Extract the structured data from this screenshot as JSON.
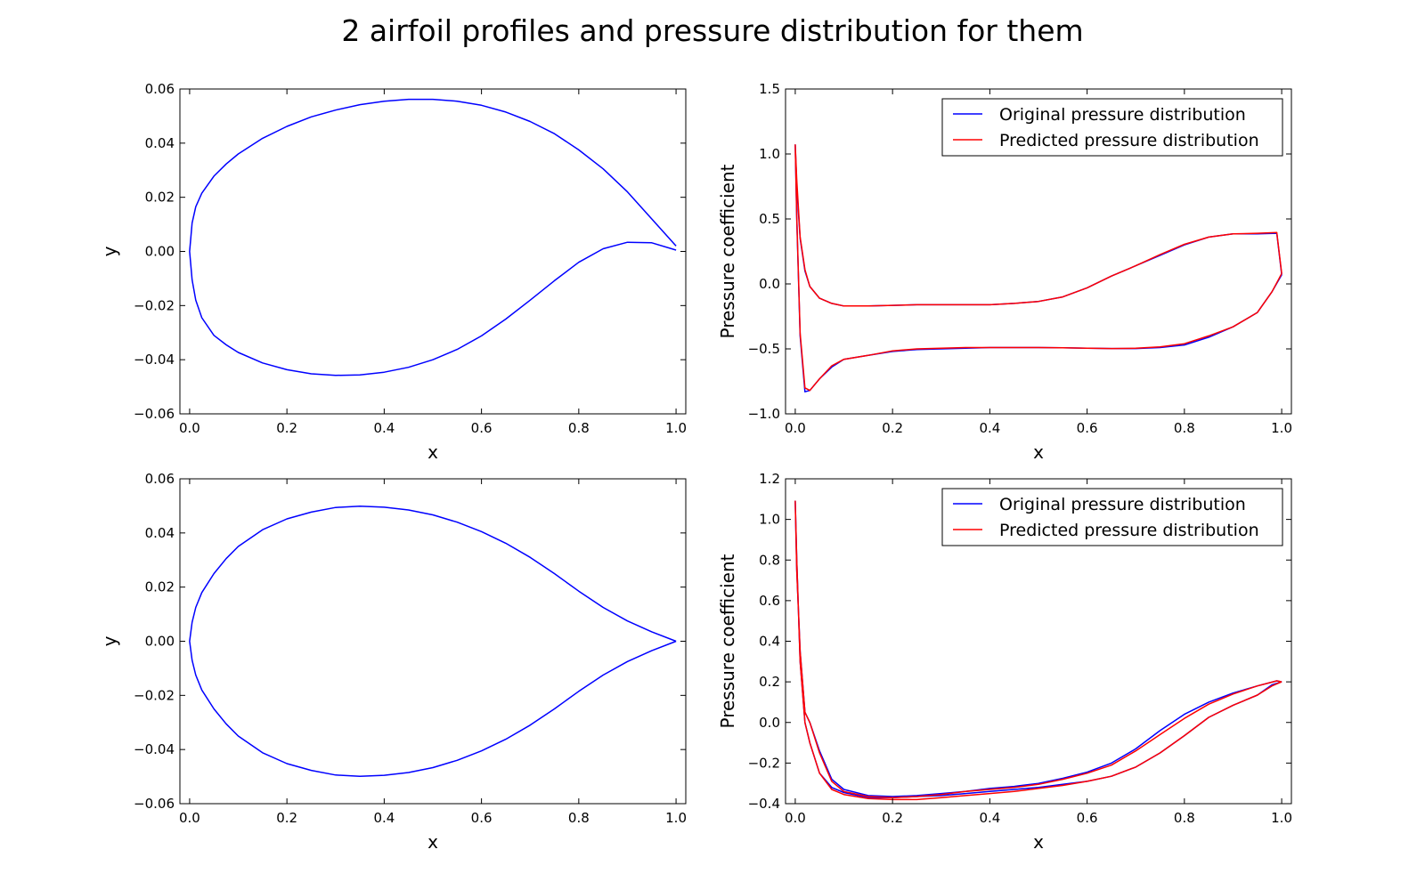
{
  "figure": {
    "title": "2 airfoil profiles and pressure distribution for them"
  },
  "colors": {
    "blue": "#0000ff",
    "red": "#ff0000"
  },
  "chart_data": [
    {
      "type": "line",
      "xlabel": "x",
      "ylabel": "y",
      "xlim": [
        -0.02,
        1.02
      ],
      "ylim": [
        -0.06,
        0.06
      ],
      "xticks": [
        0.0,
        0.2,
        0.4,
        0.6,
        0.8,
        1.0
      ],
      "xtick_labels": [
        "0.0",
        "0.2",
        "0.4",
        "0.6",
        "0.8",
        "1.0"
      ],
      "yticks": [
        -0.06,
        -0.04,
        -0.02,
        0.0,
        0.02,
        0.04,
        0.06
      ],
      "ytick_labels": [
        "−0.06",
        "−0.04",
        "−0.02",
        "0.00",
        "0.02",
        "0.04",
        "0.06"
      ],
      "series": [
        {
          "color": "blue",
          "x": [
            1.0,
            0.95,
            0.9,
            0.85,
            0.8,
            0.75,
            0.7,
            0.65,
            0.6,
            0.55,
            0.5,
            0.45,
            0.4,
            0.35,
            0.3,
            0.25,
            0.2,
            0.15,
            0.1,
            0.075,
            0.05,
            0.025,
            0.0125,
            0.005,
            0.0,
            0.005,
            0.0125,
            0.025,
            0.05,
            0.075,
            0.1,
            0.15,
            0.2,
            0.25,
            0.3,
            0.35,
            0.4,
            0.45,
            0.5,
            0.55,
            0.6,
            0.65,
            0.7,
            0.75,
            0.8,
            0.85,
            0.9,
            0.95,
            1.0
          ],
          "y": [
            0.002,
            0.012,
            0.022,
            0.0305,
            0.0375,
            0.0435,
            0.048,
            0.0515,
            0.054,
            0.0555,
            0.0562,
            0.0562,
            0.0555,
            0.0542,
            0.0522,
            0.0497,
            0.0462,
            0.0418,
            0.036,
            0.0323,
            0.0278,
            0.0215,
            0.0165,
            0.0105,
            0.0,
            -0.0105,
            -0.018,
            -0.0245,
            -0.031,
            -0.0345,
            -0.0373,
            -0.0412,
            -0.0437,
            -0.0452,
            -0.0458,
            -0.0456,
            -0.0446,
            -0.0428,
            -0.04,
            -0.0362,
            -0.0312,
            -0.025,
            -0.018,
            -0.0108,
            -0.004,
            0.001,
            0.0034,
            0.0032,
            0.0005
          ]
        }
      ]
    },
    {
      "type": "line",
      "xlabel": "x",
      "ylabel": "Pressure coefficient",
      "xlim": [
        -0.02,
        1.02
      ],
      "ylim": [
        -1.0,
        1.5
      ],
      "xticks": [
        0.0,
        0.2,
        0.4,
        0.6,
        0.8,
        1.0
      ],
      "xtick_labels": [
        "0.0",
        "0.2",
        "0.4",
        "0.6",
        "0.8",
        "1.0"
      ],
      "yticks": [
        -1.0,
        -0.5,
        0.0,
        0.5,
        1.0,
        1.5
      ],
      "ytick_labels": [
        "−1.0",
        "−0.5",
        "0.0",
        "0.5",
        "1.0",
        "1.5"
      ],
      "legend": {
        "position": "upper right",
        "entries": [
          "Original pressure distribution",
          "Predicted pressure distribution"
        ]
      },
      "series": [
        {
          "name": "Original pressure distribution",
          "color": "blue",
          "x": [
            1.0,
            0.99,
            0.95,
            0.9,
            0.85,
            0.8,
            0.75,
            0.7,
            0.65,
            0.6,
            0.55,
            0.5,
            0.45,
            0.4,
            0.35,
            0.3,
            0.25,
            0.2,
            0.15,
            0.1,
            0.075,
            0.05,
            0.03,
            0.02,
            0.01,
            0.003,
            0.0,
            0.003,
            0.01,
            0.02,
            0.03,
            0.05,
            0.075,
            0.1,
            0.15,
            0.2,
            0.25,
            0.3,
            0.35,
            0.4,
            0.45,
            0.5,
            0.55,
            0.6,
            0.65,
            0.7,
            0.75,
            0.8,
            0.85,
            0.9,
            0.95,
            0.98,
            1.0
          ],
          "y": [
            0.07,
            0.39,
            0.385,
            0.385,
            0.36,
            0.3,
            0.22,
            0.14,
            0.06,
            -0.03,
            -0.1,
            -0.135,
            -0.15,
            -0.16,
            -0.16,
            -0.16,
            -0.16,
            -0.165,
            -0.17,
            -0.17,
            -0.15,
            -0.11,
            -0.02,
            0.1,
            0.35,
            0.75,
            1.07,
            0.5,
            -0.4,
            -0.83,
            -0.82,
            -0.73,
            -0.64,
            -0.58,
            -0.55,
            -0.52,
            -0.505,
            -0.5,
            -0.495,
            -0.49,
            -0.49,
            -0.49,
            -0.492,
            -0.495,
            -0.497,
            -0.497,
            -0.49,
            -0.47,
            -0.41,
            -0.33,
            -0.22,
            -0.06,
            0.07
          ]
        },
        {
          "name": "Predicted pressure distribution",
          "color": "red",
          "x": [
            1.0,
            0.99,
            0.95,
            0.9,
            0.85,
            0.8,
            0.75,
            0.7,
            0.65,
            0.6,
            0.55,
            0.5,
            0.45,
            0.4,
            0.35,
            0.3,
            0.25,
            0.2,
            0.15,
            0.1,
            0.075,
            0.05,
            0.03,
            0.02,
            0.01,
            0.003,
            0.0,
            0.003,
            0.01,
            0.02,
            0.03,
            0.05,
            0.075,
            0.1,
            0.15,
            0.2,
            0.25,
            0.3,
            0.35,
            0.4,
            0.45,
            0.5,
            0.55,
            0.6,
            0.65,
            0.7,
            0.75,
            0.8,
            0.85,
            0.9,
            0.95,
            0.98,
            1.0
          ],
          "y": [
            0.08,
            0.395,
            0.39,
            0.385,
            0.36,
            0.305,
            0.225,
            0.14,
            0.06,
            -0.03,
            -0.1,
            -0.135,
            -0.15,
            -0.16,
            -0.16,
            -0.16,
            -0.16,
            -0.165,
            -0.17,
            -0.17,
            -0.15,
            -0.11,
            -0.02,
            0.11,
            0.36,
            0.8,
            1.07,
            0.52,
            -0.38,
            -0.8,
            -0.82,
            -0.73,
            -0.63,
            -0.58,
            -0.55,
            -0.515,
            -0.5,
            -0.495,
            -0.49,
            -0.49,
            -0.49,
            -0.49,
            -0.492,
            -0.495,
            -0.497,
            -0.495,
            -0.485,
            -0.46,
            -0.4,
            -0.33,
            -0.22,
            -0.06,
            0.08
          ]
        }
      ]
    },
    {
      "type": "line",
      "xlabel": "x",
      "ylabel": "y",
      "xlim": [
        -0.02,
        1.02
      ],
      "ylim": [
        -0.06,
        0.06
      ],
      "xticks": [
        0.0,
        0.2,
        0.4,
        0.6,
        0.8,
        1.0
      ],
      "xtick_labels": [
        "0.0",
        "0.2",
        "0.4",
        "0.6",
        "0.8",
        "1.0"
      ],
      "yticks": [
        -0.06,
        -0.04,
        -0.02,
        0.0,
        0.02,
        0.04,
        0.06
      ],
      "ytick_labels": [
        "−0.06",
        "−0.04",
        "−0.02",
        "0.00",
        "0.02",
        "0.04",
        "0.06"
      ],
      "series": [
        {
          "color": "blue",
          "x": [
            1.0,
            0.95,
            0.9,
            0.85,
            0.8,
            0.75,
            0.7,
            0.65,
            0.6,
            0.55,
            0.5,
            0.45,
            0.4,
            0.35,
            0.3,
            0.25,
            0.2,
            0.15,
            0.1,
            0.075,
            0.05,
            0.025,
            0.0125,
            0.005,
            0.0,
            0.005,
            0.0125,
            0.025,
            0.05,
            0.075,
            0.1,
            0.15,
            0.2,
            0.25,
            0.3,
            0.35,
            0.4,
            0.45,
            0.5,
            0.55,
            0.6,
            0.65,
            0.7,
            0.75,
            0.8,
            0.85,
            0.9,
            0.95,
            1.0
          ],
          "y": [
            0.0,
            0.0035,
            0.0075,
            0.0125,
            0.0185,
            0.025,
            0.031,
            0.0362,
            0.0405,
            0.044,
            0.0467,
            0.0485,
            0.0495,
            0.0499,
            0.0494,
            0.0477,
            0.0452,
            0.0412,
            0.035,
            0.0305,
            0.025,
            0.018,
            0.0125,
            0.007,
            0.0,
            -0.007,
            -0.0125,
            -0.018,
            -0.025,
            -0.0305,
            -0.035,
            -0.0412,
            -0.0452,
            -0.0477,
            -0.0494,
            -0.0499,
            -0.0495,
            -0.0485,
            -0.0467,
            -0.044,
            -0.0405,
            -0.0362,
            -0.031,
            -0.025,
            -0.0185,
            -0.0125,
            -0.0075,
            -0.0035,
            0.0
          ]
        }
      ]
    },
    {
      "type": "line",
      "xlabel": "x",
      "ylabel": "Pressure coefficient",
      "xlim": [
        -0.02,
        1.02
      ],
      "ylim": [
        -0.4,
        1.2
      ],
      "xticks": [
        0.0,
        0.2,
        0.4,
        0.6,
        0.8,
        1.0
      ],
      "xtick_labels": [
        "0.0",
        "0.2",
        "0.4",
        "0.6",
        "0.8",
        "1.0"
      ],
      "yticks": [
        -0.4,
        -0.2,
        0.0,
        0.2,
        0.4,
        0.6,
        0.8,
        1.0,
        1.2
      ],
      "ytick_labels": [
        "−0.4",
        "−0.2",
        "0.0",
        "0.2",
        "0.4",
        "0.6",
        "0.8",
        "1.0",
        "1.2"
      ],
      "legend": {
        "position": "upper right",
        "entries": [
          "Original pressure distribution",
          "Predicted pressure distribution"
        ]
      },
      "series": [
        {
          "name": "Original pressure distribution",
          "color": "blue",
          "x": [
            1.0,
            0.99,
            0.95,
            0.9,
            0.85,
            0.8,
            0.75,
            0.7,
            0.65,
            0.6,
            0.55,
            0.5,
            0.45,
            0.4,
            0.35,
            0.3,
            0.25,
            0.2,
            0.15,
            0.1,
            0.075,
            0.05,
            0.03,
            0.02,
            0.01,
            0.003,
            0.0,
            0.003,
            0.01,
            0.02,
            0.03,
            0.05,
            0.075,
            0.1,
            0.15,
            0.2,
            0.25,
            0.3,
            0.35,
            0.4,
            0.45,
            0.5,
            0.55,
            0.6,
            0.65,
            0.7,
            0.75,
            0.8,
            0.85,
            0.9,
            0.95,
            0.98,
            1.0
          ],
          "y": [
            0.2,
            0.205,
            0.18,
            0.145,
            0.1,
            0.04,
            -0.04,
            -0.13,
            -0.2,
            -0.245,
            -0.275,
            -0.3,
            -0.315,
            -0.325,
            -0.34,
            -0.35,
            -0.36,
            -0.365,
            -0.36,
            -0.33,
            -0.28,
            -0.14,
            0.0,
            0.05,
            0.35,
            0.75,
            1.09,
            0.8,
            0.3,
            -0.0,
            -0.1,
            -0.25,
            -0.32,
            -0.345,
            -0.37,
            -0.37,
            -0.365,
            -0.36,
            -0.35,
            -0.34,
            -0.33,
            -0.32,
            -0.305,
            -0.29,
            -0.265,
            -0.22,
            -0.15,
            -0.065,
            0.025,
            0.085,
            0.135,
            0.185,
            0.2
          ]
        },
        {
          "name": "Predicted pressure distribution",
          "color": "red",
          "x": [
            1.0,
            0.99,
            0.95,
            0.9,
            0.85,
            0.8,
            0.75,
            0.7,
            0.65,
            0.6,
            0.55,
            0.5,
            0.45,
            0.4,
            0.35,
            0.3,
            0.25,
            0.2,
            0.15,
            0.1,
            0.075,
            0.05,
            0.03,
            0.02,
            0.01,
            0.003,
            0.0,
            0.003,
            0.01,
            0.02,
            0.03,
            0.05,
            0.075,
            0.1,
            0.15,
            0.2,
            0.25,
            0.3,
            0.35,
            0.4,
            0.45,
            0.5,
            0.55,
            0.6,
            0.65,
            0.7,
            0.75,
            0.8,
            0.85,
            0.9,
            0.95,
            0.98,
            1.0
          ],
          "y": [
            0.2,
            0.205,
            0.18,
            0.14,
            0.09,
            0.02,
            -0.06,
            -0.14,
            -0.21,
            -0.25,
            -0.28,
            -0.305,
            -0.32,
            -0.33,
            -0.34,
            -0.355,
            -0.365,
            -0.37,
            -0.365,
            -0.34,
            -0.29,
            -0.15,
            0.0,
            0.05,
            0.35,
            0.75,
            1.09,
            0.8,
            0.3,
            -0.0,
            -0.1,
            -0.25,
            -0.33,
            -0.355,
            -0.375,
            -0.38,
            -0.38,
            -0.37,
            -0.36,
            -0.35,
            -0.34,
            -0.325,
            -0.31,
            -0.29,
            -0.265,
            -0.22,
            -0.15,
            -0.065,
            0.025,
            0.085,
            0.135,
            0.18,
            0.2
          ]
        }
      ]
    }
  ]
}
